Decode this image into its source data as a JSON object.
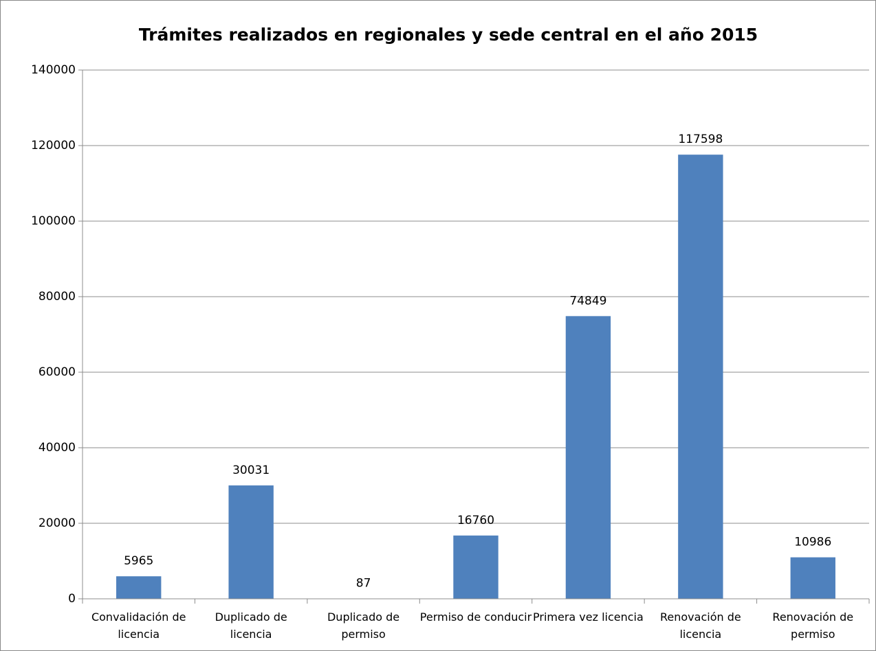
{
  "chart_data": {
    "type": "bar",
    "title": "Trámites realizados en regionales y sede central en el año  2015",
    "categories": [
      "Convalidación de licencia",
      "Duplicado de licencia",
      "Duplicado de permiso",
      "Permiso de conducir",
      "Primera vez licencia",
      "Renovación de licencia",
      "Renovación de permiso"
    ],
    "values": [
      5965,
      30031,
      87,
      16760,
      74849,
      117598,
      10986
    ],
    "color": "#4f81bd",
    "ylim": [
      0,
      140000
    ],
    "yticks": [
      0,
      20000,
      40000,
      60000,
      80000,
      100000,
      120000,
      140000
    ],
    "grid": true
  }
}
